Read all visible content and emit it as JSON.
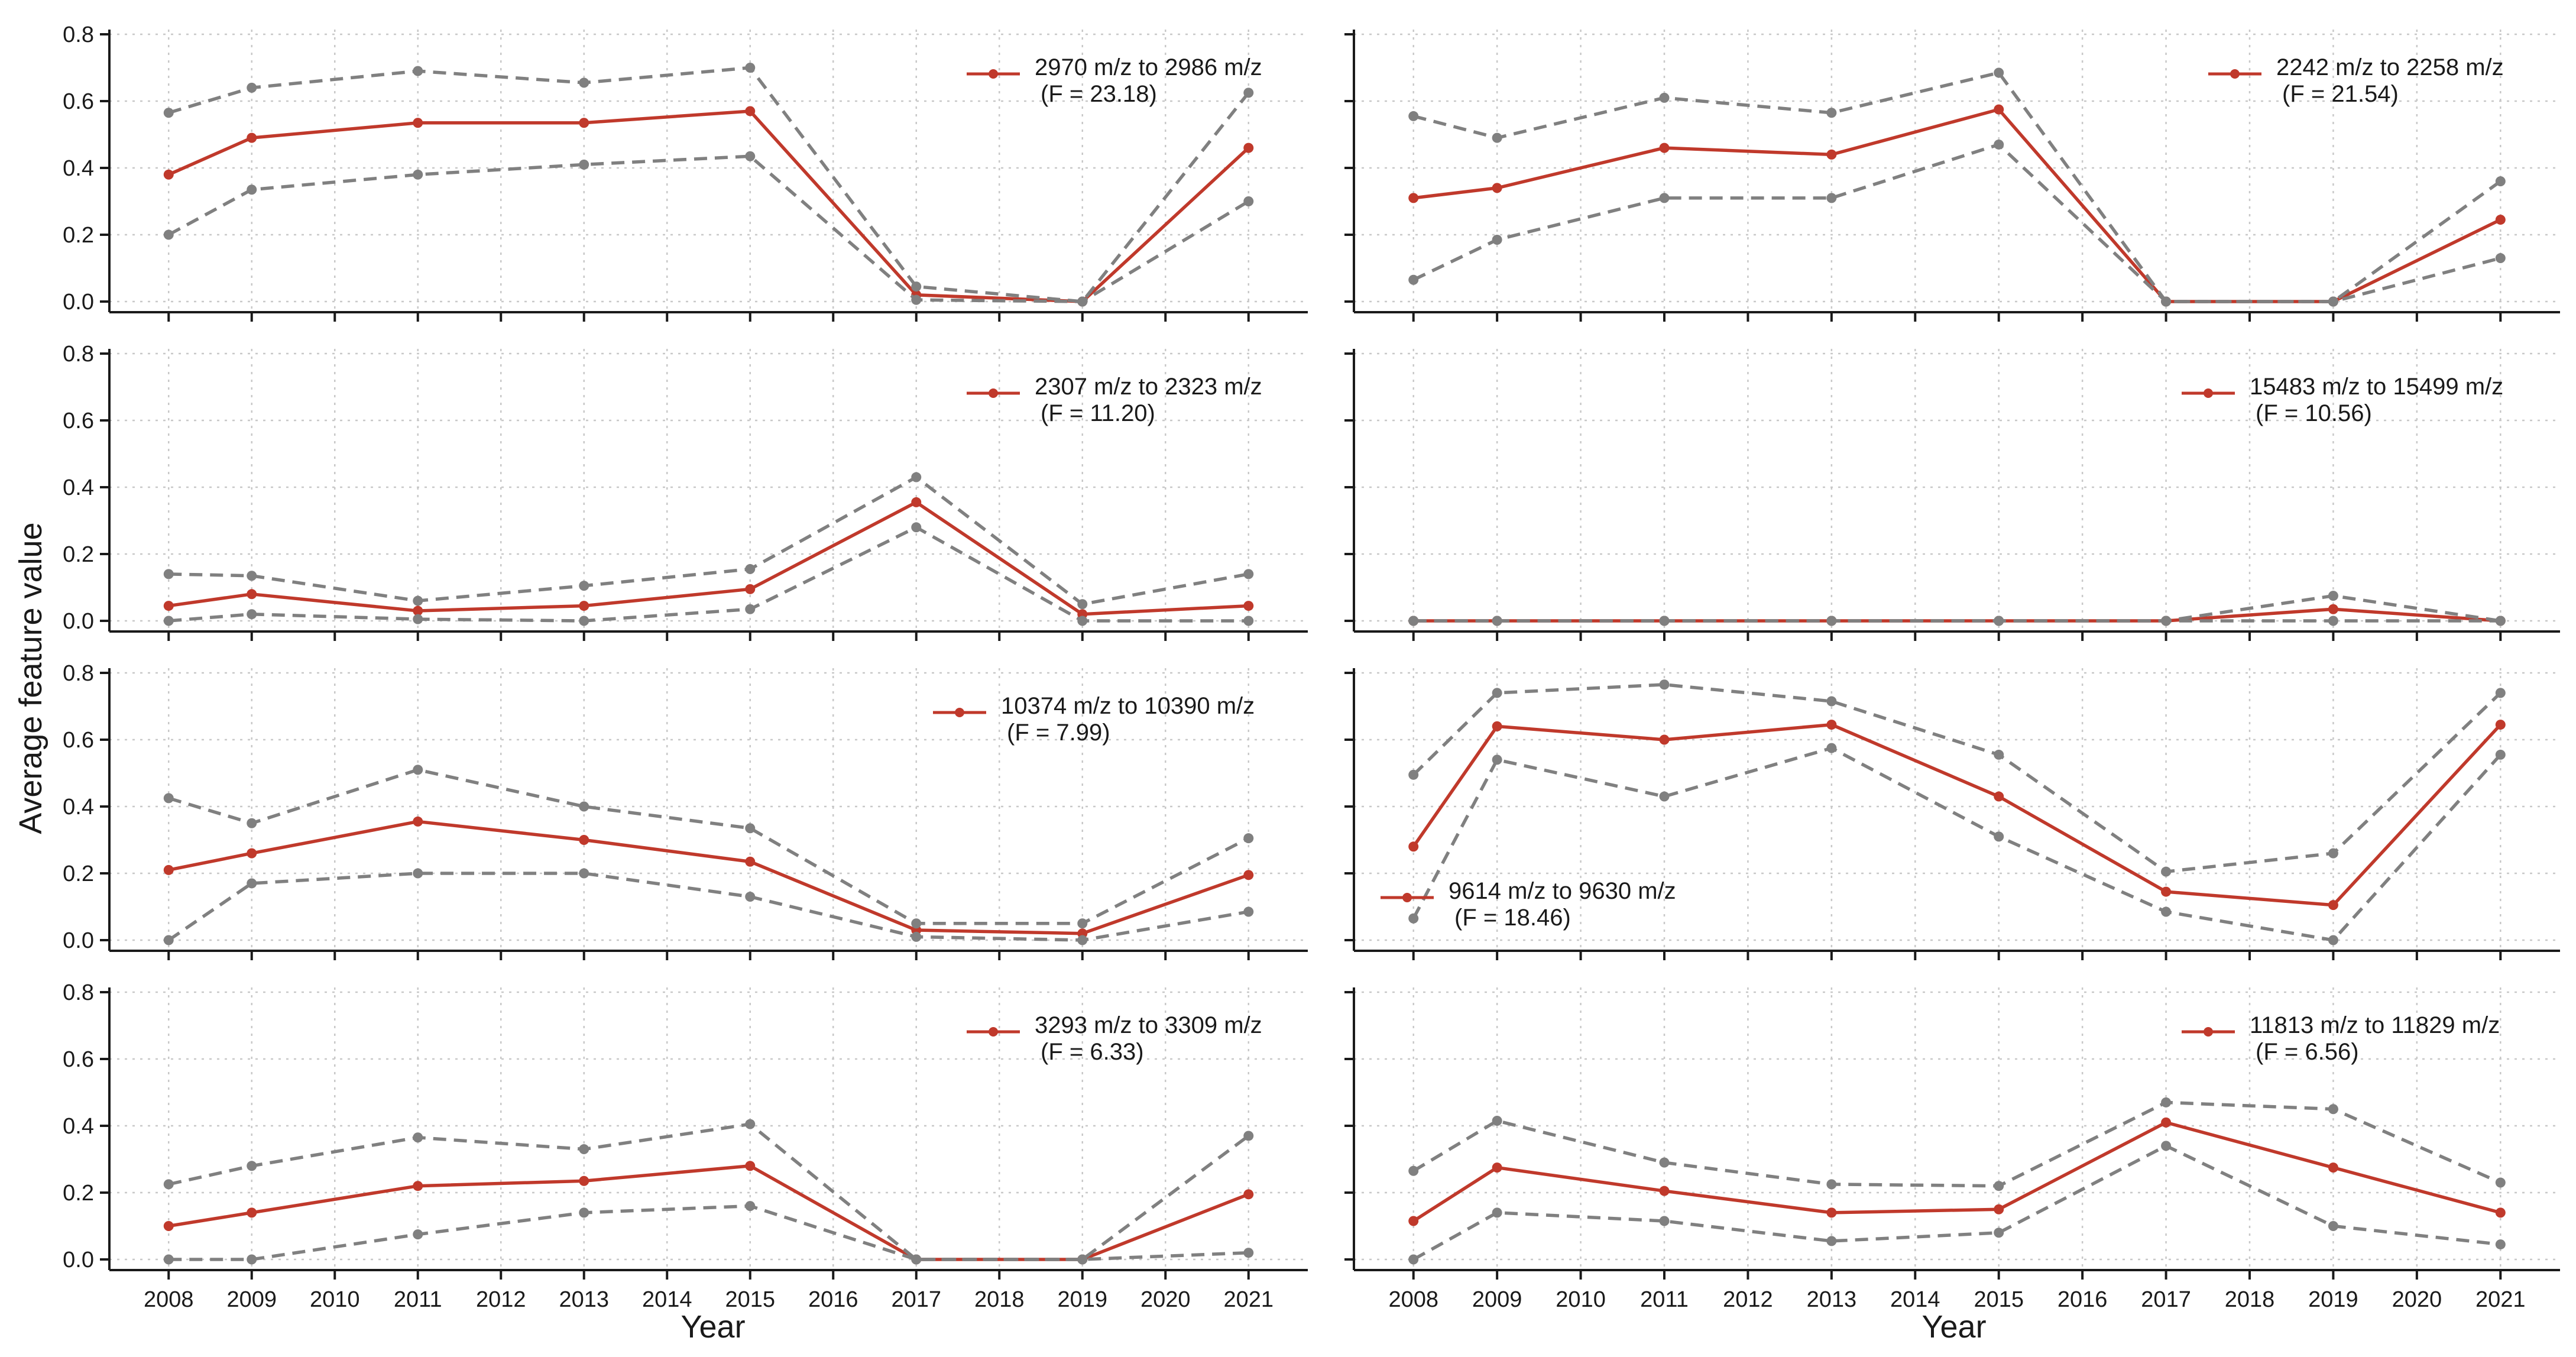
{
  "figure": {
    "ylabel": "Average feature value",
    "xlabel": "Year"
  },
  "colors": {
    "mean_line": "#c0392b",
    "ci_line": "#808080",
    "axis": "#1a1a1a",
    "grid": "#c8c8c8"
  },
  "chart_data": [
    {
      "type": "line",
      "legend_label": "2970 m/z to 2986 m/z",
      "f_label": "(F = 23.18)",
      "legend_position": "top-right",
      "x_years": [
        2008,
        2009,
        2011,
        2013,
        2015,
        2017,
        2019,
        2021
      ],
      "series": [
        {
          "name": "mean",
          "values": [
            0.38,
            0.49,
            0.535,
            0.535,
            0.57,
            0.02,
            0.0,
            0.46
          ]
        },
        {
          "name": "upper",
          "values": [
            0.565,
            0.64,
            0.69,
            0.655,
            0.7,
            0.045,
            0.0,
            0.625
          ]
        },
        {
          "name": "lower",
          "values": [
            0.2,
            0.335,
            0.38,
            0.41,
            0.435,
            0.005,
            0.0,
            0.3
          ]
        }
      ],
      "ylim": [
        0,
        0.8
      ],
      "yticks": [
        "0.0",
        "0.2",
        "0.4",
        "0.6",
        "0.8"
      ]
    },
    {
      "type": "line",
      "legend_label": "2242 m/z to 2258 m/z",
      "f_label": "(F = 21.54)",
      "legend_position": "top-right",
      "x_years": [
        2008,
        2009,
        2011,
        2013,
        2015,
        2017,
        2019,
        2021
      ],
      "series": [
        {
          "name": "mean",
          "values": [
            0.31,
            0.34,
            0.46,
            0.44,
            0.575,
            0.0,
            0.0,
            0.245
          ]
        },
        {
          "name": "upper",
          "values": [
            0.555,
            0.49,
            0.61,
            0.565,
            0.685,
            0.0,
            0.0,
            0.36
          ]
        },
        {
          "name": "lower",
          "values": [
            0.065,
            0.185,
            0.31,
            0.31,
            0.47,
            0.0,
            0.0,
            0.13
          ]
        }
      ],
      "ylim": [
        0,
        0.8
      ],
      "yticks": [
        "0.0",
        "0.2",
        "0.4",
        "0.6",
        "0.8"
      ]
    },
    {
      "type": "line",
      "legend_label": "2307 m/z to 2323 m/z",
      "f_label": "(F = 11.20)",
      "legend_position": "top-right",
      "x_years": [
        2008,
        2009,
        2011,
        2013,
        2015,
        2017,
        2019,
        2021
      ],
      "series": [
        {
          "name": "mean",
          "values": [
            0.045,
            0.08,
            0.03,
            0.045,
            0.095,
            0.355,
            0.02,
            0.045
          ]
        },
        {
          "name": "upper",
          "values": [
            0.14,
            0.135,
            0.06,
            0.105,
            0.155,
            0.43,
            0.05,
            0.14
          ]
        },
        {
          "name": "lower",
          "values": [
            0.0,
            0.02,
            0.005,
            0.0,
            0.035,
            0.28,
            0.0,
            0.0
          ]
        }
      ],
      "ylim": [
        0,
        0.8
      ],
      "yticks": [
        "0.0",
        "0.2",
        "0.4",
        "0.6",
        "0.8"
      ]
    },
    {
      "type": "line",
      "legend_label": "15483 m/z to 15499 m/z",
      "f_label": "(F = 10.56)",
      "legend_position": "top-right",
      "x_years": [
        2008,
        2009,
        2011,
        2013,
        2015,
        2017,
        2019,
        2021
      ],
      "series": [
        {
          "name": "mean",
          "values": [
            0.0,
            0.0,
            0.0,
            0.0,
            0.0,
            0.0,
            0.035,
            0.0
          ]
        },
        {
          "name": "upper",
          "values": [
            0.0,
            0.0,
            0.0,
            0.0,
            0.0,
            0.0,
            0.075,
            0.0
          ]
        },
        {
          "name": "lower",
          "values": [
            0.0,
            0.0,
            0.0,
            0.0,
            0.0,
            0.0,
            0.0,
            0.0
          ]
        }
      ],
      "ylim": [
        0,
        0.8
      ],
      "yticks": [
        "0.0",
        "0.2",
        "0.4",
        "0.6",
        "0.8"
      ]
    },
    {
      "type": "line",
      "legend_label": "10374 m/z to 10390 m/z",
      "f_label": "(F = 7.99)",
      "legend_position": "top-right",
      "x_years": [
        2008,
        2009,
        2011,
        2013,
        2015,
        2017,
        2019,
        2021
      ],
      "series": [
        {
          "name": "mean",
          "values": [
            0.21,
            0.26,
            0.355,
            0.3,
            0.235,
            0.03,
            0.02,
            0.195
          ]
        },
        {
          "name": "upper",
          "values": [
            0.425,
            0.35,
            0.51,
            0.4,
            0.335,
            0.05,
            0.05,
            0.305
          ]
        },
        {
          "name": "lower",
          "values": [
            0.0,
            0.17,
            0.2,
            0.2,
            0.13,
            0.01,
            0.0,
            0.085
          ]
        }
      ],
      "ylim": [
        0,
        0.8
      ],
      "yticks": [
        "0.0",
        "0.2",
        "0.4",
        "0.6",
        "0.8"
      ]
    },
    {
      "type": "line",
      "legend_label": "9614 m/z to 9630 m/z",
      "f_label": "(F = 18.46)",
      "legend_position": "bottom-left",
      "x_years": [
        2008,
        2009,
        2011,
        2013,
        2015,
        2017,
        2019,
        2021
      ],
      "series": [
        {
          "name": "mean",
          "values": [
            0.28,
            0.64,
            0.6,
            0.645,
            0.43,
            0.145,
            0.105,
            0.645
          ]
        },
        {
          "name": "upper",
          "values": [
            0.495,
            0.74,
            0.765,
            0.715,
            0.555,
            0.205,
            0.26,
            0.74
          ]
        },
        {
          "name": "lower",
          "values": [
            0.065,
            0.54,
            0.43,
            0.575,
            0.31,
            0.085,
            0.0,
            0.555
          ]
        }
      ],
      "ylim": [
        0,
        0.8
      ],
      "yticks": [
        "0.0",
        "0.2",
        "0.4",
        "0.6",
        "0.8"
      ]
    },
    {
      "type": "line",
      "legend_label": "3293 m/z to 3309 m/z",
      "f_label": "(F = 6.33)",
      "legend_position": "top-right",
      "x_years": [
        2008,
        2009,
        2011,
        2013,
        2015,
        2017,
        2019,
        2021
      ],
      "series": [
        {
          "name": "mean",
          "values": [
            0.1,
            0.14,
            0.22,
            0.235,
            0.28,
            0.0,
            0.0,
            0.195
          ]
        },
        {
          "name": "upper",
          "values": [
            0.225,
            0.28,
            0.365,
            0.33,
            0.405,
            0.0,
            0.0,
            0.37
          ]
        },
        {
          "name": "lower",
          "values": [
            0.0,
            0.0,
            0.075,
            0.14,
            0.16,
            0.0,
            0.0,
            0.02
          ]
        }
      ],
      "ylim": [
        0,
        0.8
      ],
      "yticks": [
        "0.0",
        "0.2",
        "0.4",
        "0.6",
        "0.8"
      ]
    },
    {
      "type": "line",
      "legend_label": "11813 m/z to 11829 m/z",
      "f_label": "(F = 6.56)",
      "legend_position": "top-right",
      "x_years": [
        2008,
        2009,
        2011,
        2013,
        2015,
        2017,
        2019,
        2021
      ],
      "series": [
        {
          "name": "mean",
          "values": [
            0.115,
            0.275,
            0.205,
            0.14,
            0.15,
            0.41,
            0.275,
            0.14
          ]
        },
        {
          "name": "upper",
          "values": [
            0.265,
            0.415,
            0.29,
            0.225,
            0.22,
            0.47,
            0.45,
            0.23
          ]
        },
        {
          "name": "lower",
          "values": [
            0.0,
            0.14,
            0.115,
            0.055,
            0.08,
            0.34,
            0.1,
            0.045
          ]
        }
      ],
      "ylim": [
        0,
        0.8
      ],
      "yticks": [
        "0.0",
        "0.2",
        "0.4",
        "0.6",
        "0.8"
      ]
    }
  ],
  "x_axis": {
    "tick_labels": [
      "2008",
      "2009",
      "2010",
      "2011",
      "2012",
      "2013",
      "2014",
      "2015",
      "2016",
      "2017",
      "2018",
      "2019",
      "2020",
      "2021"
    ],
    "range": [
      2007.5,
      2021.5
    ]
  }
}
